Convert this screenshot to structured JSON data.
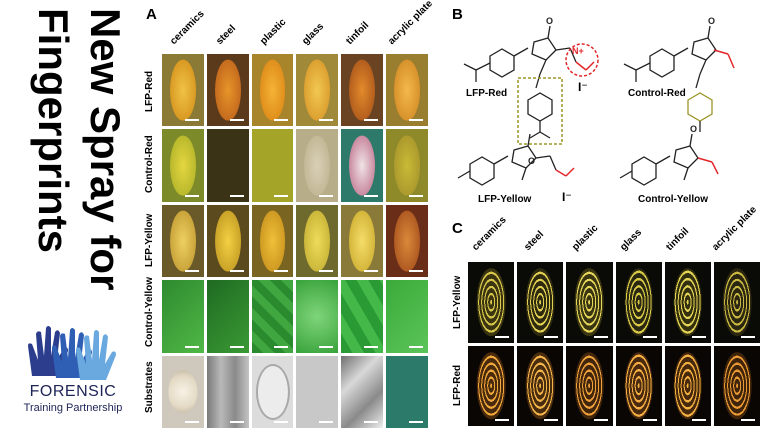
{
  "title": {
    "line1": "New Spray for",
    "line2": "Fingerprints"
  },
  "brand": {
    "name": "FORENSIC",
    "tagline": "Training Partnership",
    "color": "#1d2456"
  },
  "panel_a": {
    "letter": "A",
    "columns": [
      "ceramics",
      "steel",
      "plastic",
      "glass",
      "tinfoil",
      "acrylic plate"
    ],
    "rows": [
      "LFP-Red",
      "Control-Red",
      "LFP-Yellow",
      "Control-Yellow",
      "Substrates"
    ]
  },
  "panel_b": {
    "letter": "B",
    "labels": [
      "LFP-Red",
      "Control-Red",
      "LFP-Yellow",
      "Control-Yellow"
    ],
    "iodide": "I⁻"
  },
  "panel_c": {
    "letter": "C",
    "columns": [
      "ceramics",
      "steel",
      "plastic",
      "glass",
      "tinfoil",
      "acrylic plate"
    ],
    "rows": [
      "LFP-Yellow",
      "LFP-Red"
    ]
  },
  "colors": {
    "print_red": "#d8a23a",
    "print_yellow": "#d6c048",
    "control_green": "#2fa238",
    "highlight_red": "#e3262a",
    "highlight_olive": "#a7a23a"
  }
}
